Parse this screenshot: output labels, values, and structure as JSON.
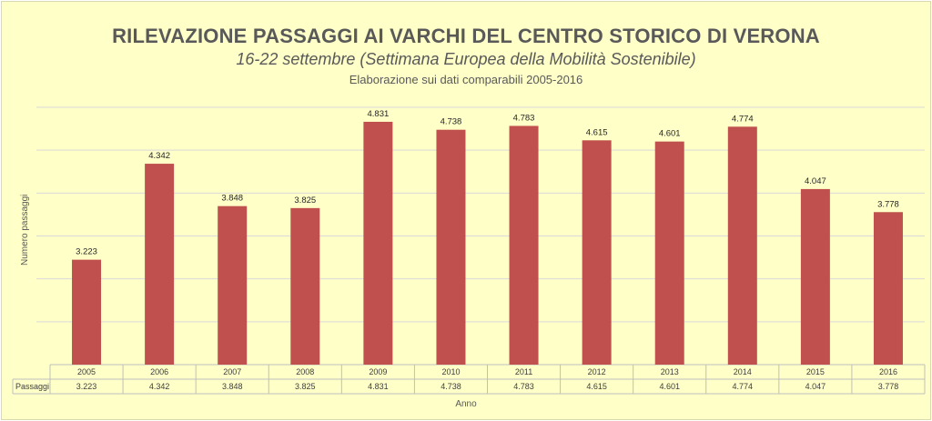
{
  "chart_data": {
    "type": "bar",
    "title": "RILEVAZIONE PASSAGGI AI VARCHI DEL CENTRO STORICO DI VERONA",
    "subtitle": "16-22 settembre  (Settimana Europea della Mobilità Sostenibile)",
    "subtitle2": "Elaborazione sui dati comparabili 2005-2016",
    "xlabel": "Anno",
    "ylabel": "Numero  passaggi",
    "categories": [
      "2005",
      "2006",
      "2007",
      "2008",
      "2009",
      "2010",
      "2011",
      "2012",
      "2013",
      "2014",
      "2015",
      "2016"
    ],
    "series": [
      {
        "name": "Passaggi",
        "values": [
          3223,
          4342,
          3848,
          3825,
          4831,
          4738,
          4783,
          4615,
          4601,
          4774,
          4047,
          3778
        ],
        "labels": [
          "3.223",
          "4.342",
          "3.848",
          "3.825",
          "4.831",
          "4.738",
          "4.783",
          "4.615",
          "4.601",
          "4.774",
          "4.047",
          "3.778"
        ]
      }
    ],
    "ylim": [
      2000,
      5000
    ],
    "grid": true,
    "bar_color": "#c0504d",
    "background_color": "#ffffc8",
    "grid_color": "#d9d9d9"
  }
}
